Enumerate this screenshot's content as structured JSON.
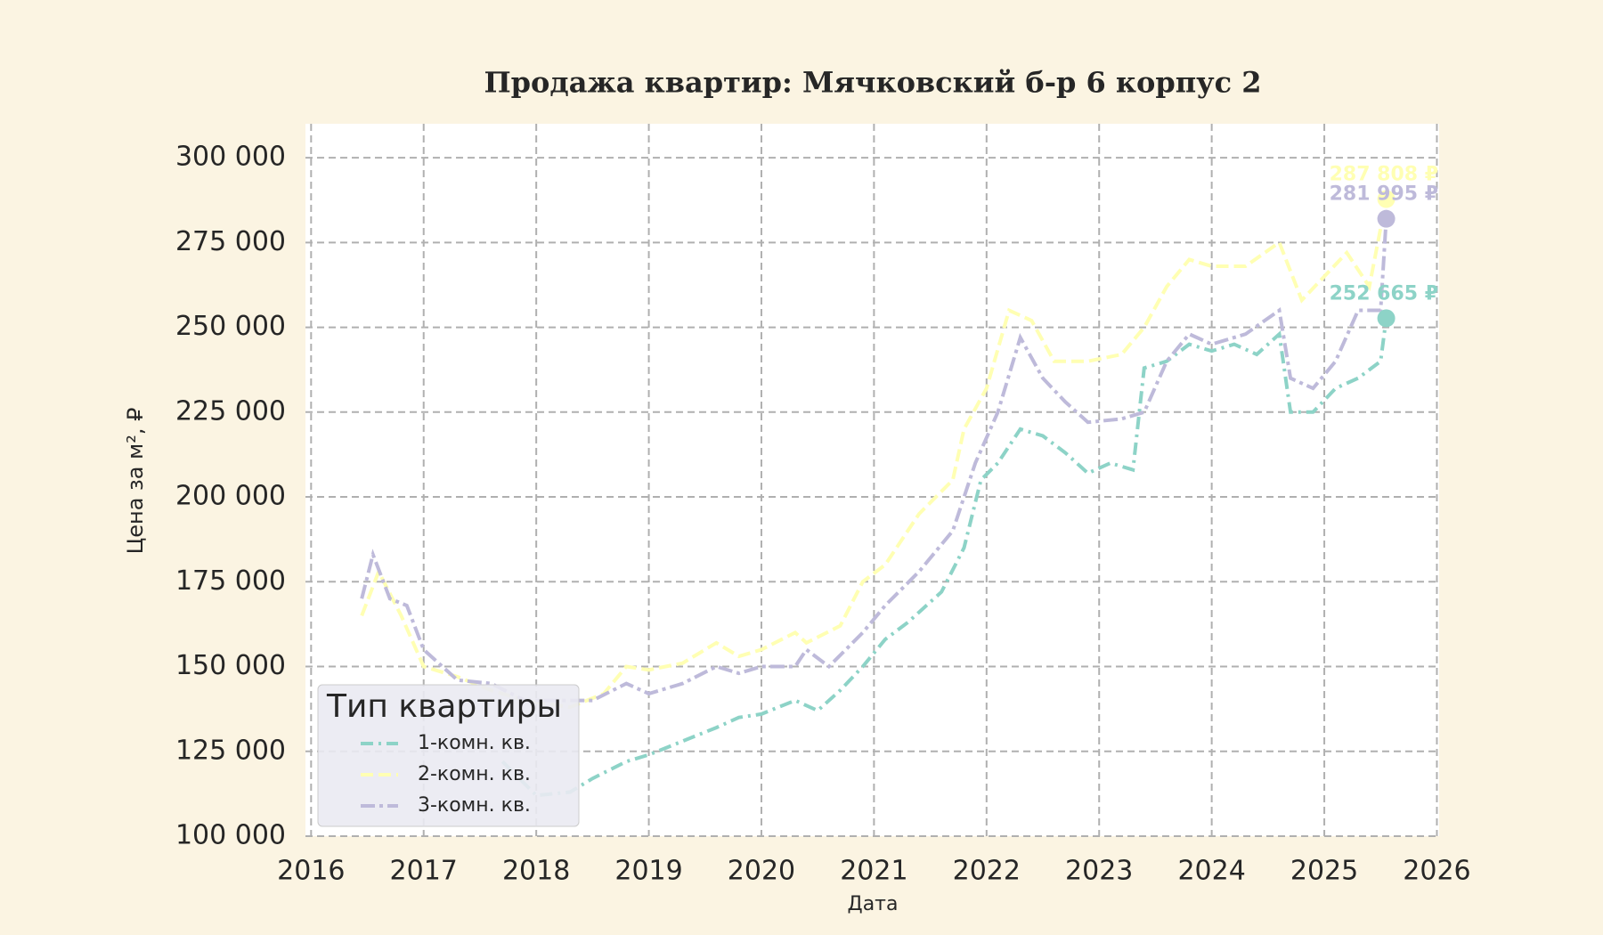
{
  "chart_data": {
    "type": "line",
    "title": "Продажа квартир: Мячковский б-р 6 корпус 2",
    "x_label": "Дата",
    "y_label": "Цена за м², ₽",
    "xlim": [
      2015.95,
      2026.02
    ],
    "ylim": [
      100000,
      310000
    ],
    "xticks": [
      2016,
      2017,
      2018,
      2019,
      2020,
      2021,
      2022,
      2023,
      2024,
      2025,
      2026
    ],
    "yticks": [
      {
        "value": 100000,
        "label": "100 000"
      },
      {
        "value": 125000,
        "label": "125 000"
      },
      {
        "value": 150000,
        "label": "150 000"
      },
      {
        "value": 175000,
        "label": "175 000"
      },
      {
        "value": 200000,
        "label": "200 000"
      },
      {
        "value": 225000,
        "label": "225 000"
      },
      {
        "value": 250000,
        "label": "250 000"
      },
      {
        "value": 275000,
        "label": "275 000"
      },
      {
        "value": 300000,
        "label": "300 000"
      }
    ],
    "grid": true,
    "legend_title": "Тип квартиры",
    "legend_position": "lower left",
    "series": [
      {
        "name": "1-комн. кв.",
        "color": "#8dd3c7",
        "x": [
          2017.7,
          2018.0,
          2018.3,
          2018.5,
          2018.8,
          2019.0,
          2019.3,
          2019.6,
          2019.8,
          2020.0,
          2020.3,
          2020.5,
          2020.7,
          2020.9,
          2021.1,
          2021.3,
          2021.6,
          2021.8,
          2021.95,
          2022.1,
          2022.3,
          2022.5,
          2022.7,
          2022.9,
          2023.1,
          2023.3,
          2023.4,
          2023.6,
          2023.8,
          2024.0,
          2024.2,
          2024.4,
          2024.6,
          2024.7,
          2024.9,
          2025.1,
          2025.3,
          2025.5,
          2025.55
        ],
        "values": [
          122000,
          112000,
          113000,
          117000,
          122000,
          124000,
          128000,
          132000,
          135000,
          136000,
          140000,
          137000,
          143000,
          150000,
          158000,
          163000,
          172000,
          185000,
          205000,
          210000,
          220000,
          218000,
          213000,
          207000,
          210000,
          208000,
          238000,
          240000,
          245000,
          243000,
          245000,
          242000,
          248000,
          225000,
          225000,
          232000,
          235000,
          240000,
          252665
        ]
      },
      {
        "name": "2-комн. кв.",
        "color": "#ffffb3",
        "x": [
          2016.45,
          2016.6,
          2016.8,
          2017.0,
          2017.3,
          2017.6,
          2017.9,
          2018.3,
          2018.6,
          2018.8,
          2019.0,
          2019.3,
          2019.6,
          2019.8,
          2020.0,
          2020.3,
          2020.4,
          2020.7,
          2020.9,
          2021.1,
          2021.4,
          2021.7,
          2021.8,
          2022.0,
          2022.2,
          2022.4,
          2022.6,
          2022.9,
          2023.2,
          2023.4,
          2023.6,
          2023.8,
          2024.0,
          2024.3,
          2024.6,
          2024.8,
          2025.0,
          2025.2,
          2025.4,
          2025.55
        ],
        "values": [
          165000,
          178000,
          165000,
          150000,
          147000,
          143000,
          140000,
          138000,
          142000,
          150000,
          149000,
          151000,
          157000,
          153000,
          155000,
          160000,
          157000,
          162000,
          175000,
          180000,
          195000,
          205000,
          220000,
          232000,
          255000,
          252000,
          240000,
          240000,
          242000,
          250000,
          262000,
          270000,
          268000,
          268000,
          275000,
          258000,
          265000,
          272000,
          262000,
          287808
        ]
      },
      {
        "name": "3-комн. кв.",
        "color": "#bebada",
        "x": [
          2016.45,
          2016.55,
          2016.7,
          2016.85,
          2017.0,
          2017.3,
          2017.6,
          2017.9,
          2018.2,
          2018.5,
          2018.8,
          2019.0,
          2019.3,
          2019.6,
          2019.8,
          2020.0,
          2020.3,
          2020.4,
          2020.6,
          2020.9,
          2021.1,
          2021.4,
          2021.7,
          2021.9,
          2022.1,
          2022.3,
          2022.5,
          2022.7,
          2022.9,
          2023.2,
          2023.4,
          2023.6,
          2023.8,
          2024.0,
          2024.3,
          2024.6,
          2024.7,
          2024.9,
          2025.1,
          2025.3,
          2025.5,
          2025.55
        ],
        "values": [
          170000,
          183000,
          170000,
          168000,
          155000,
          146000,
          145000,
          140000,
          140000,
          140000,
          145000,
          142000,
          145000,
          150000,
          148000,
          150000,
          150000,
          155000,
          150000,
          160000,
          168000,
          178000,
          190000,
          210000,
          225000,
          247000,
          235000,
          228000,
          222000,
          223000,
          225000,
          240000,
          248000,
          245000,
          248000,
          255000,
          235000,
          232000,
          240000,
          255000,
          255000,
          281995
        ]
      }
    ],
    "annotations": [
      {
        "x": 2025.55,
        "y": 287808,
        "label": "287 808 ₽",
        "color": "#ffffb3"
      },
      {
        "x": 2025.55,
        "y": 281995,
        "label": "281 995 ₽",
        "color": "#bebada"
      },
      {
        "x": 2025.55,
        "y": 252665,
        "label": "252 665 ₽",
        "color": "#8dd3c7"
      }
    ]
  }
}
